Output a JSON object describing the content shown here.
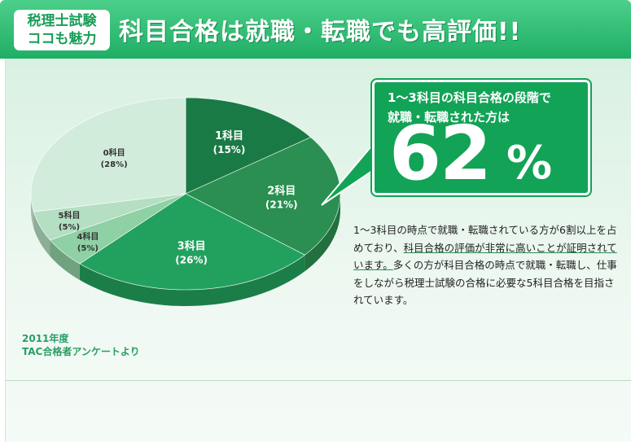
{
  "header": {
    "badge_line1": "税理士試験",
    "badge_line2": "ココも魅力",
    "title": "科目合格は就職・転職でも高評価!!"
  },
  "chart_data": {
    "type": "pie",
    "title": "",
    "slices": [
      {
        "label": "1科目",
        "pct_label": "(15%)",
        "value": 15,
        "color": "#1a7a45"
      },
      {
        "label": "2科目",
        "pct_label": "(21%)",
        "value": 21,
        "color": "#2a8f50"
      },
      {
        "label": "3科目",
        "pct_label": "(26%)",
        "value": 26,
        "color": "#22a15e"
      },
      {
        "label": "4科目",
        "pct_label": "(5%)",
        "value": 5,
        "color": "#8fd0a4"
      },
      {
        "label": "5科目",
        "pct_label": "(5%)",
        "value": 5,
        "color": "#b4dfc2"
      },
      {
        "label": "0科目",
        "pct_label": "(28%)",
        "value": 28,
        "color": "#d2ecdb"
      }
    ],
    "start_angle_deg": -90
  },
  "callout": {
    "line1": "1～3科目の科目合格の段階で",
    "line2": "就職・転職された方は",
    "value": "62",
    "unit": "%"
  },
  "description": {
    "part1": "1～3科目の時点で就職・転職されている方が6割以上を占めており、",
    "part2": "科目合格の評価が非常に高いことが証明されています。",
    "part3": "多くの方が科目合格の時点で就職・転職し、仕事をしながら税理士試験の合格に必要な5科目合格を目指されています。"
  },
  "source": {
    "line1": "2011年度",
    "line2": "TAC合格者アンケートより"
  },
  "colors": {
    "accent": "#1fae65",
    "panel_bg": "#e6f5ec",
    "callout_bg": "#12a356"
  }
}
